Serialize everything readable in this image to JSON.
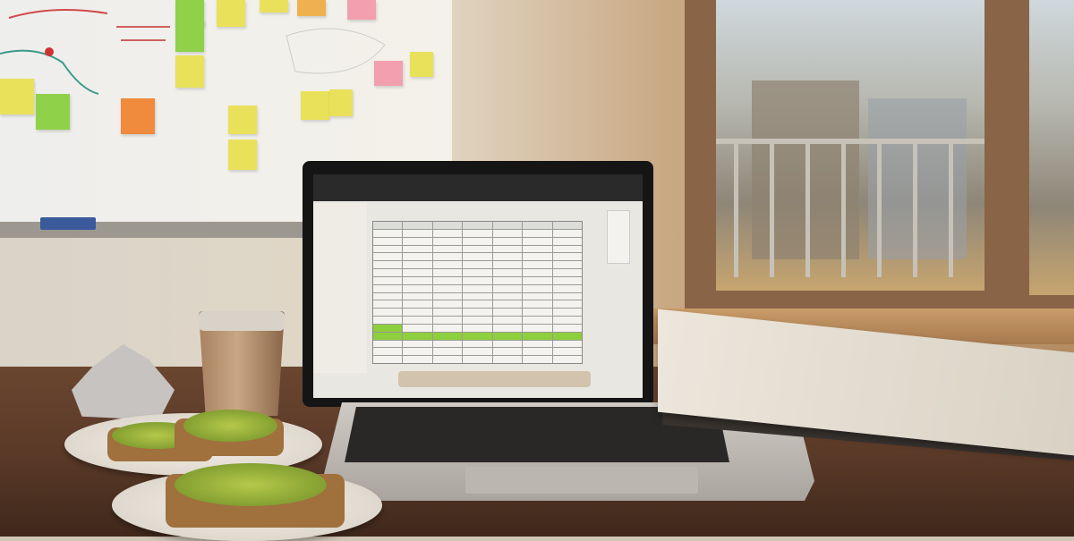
{
  "scene": {
    "colors": {
      "wall": "#d9d3c8",
      "desk": "#5b3a28",
      "laptop_body": "#c4bfb9",
      "spreadsheet_highlight": "#8ecf3e",
      "sticky_yellow": "#e9e15a",
      "sticky_green": "#8fd24a",
      "sticky_orange": "#f08a3c",
      "sticky_pink": "#f2a0b0"
    },
    "spreadsheet": {
      "columns": 7,
      "rows": 18,
      "header_rows": 1,
      "highlighted_rows": [
        13,
        14
      ]
    }
  }
}
